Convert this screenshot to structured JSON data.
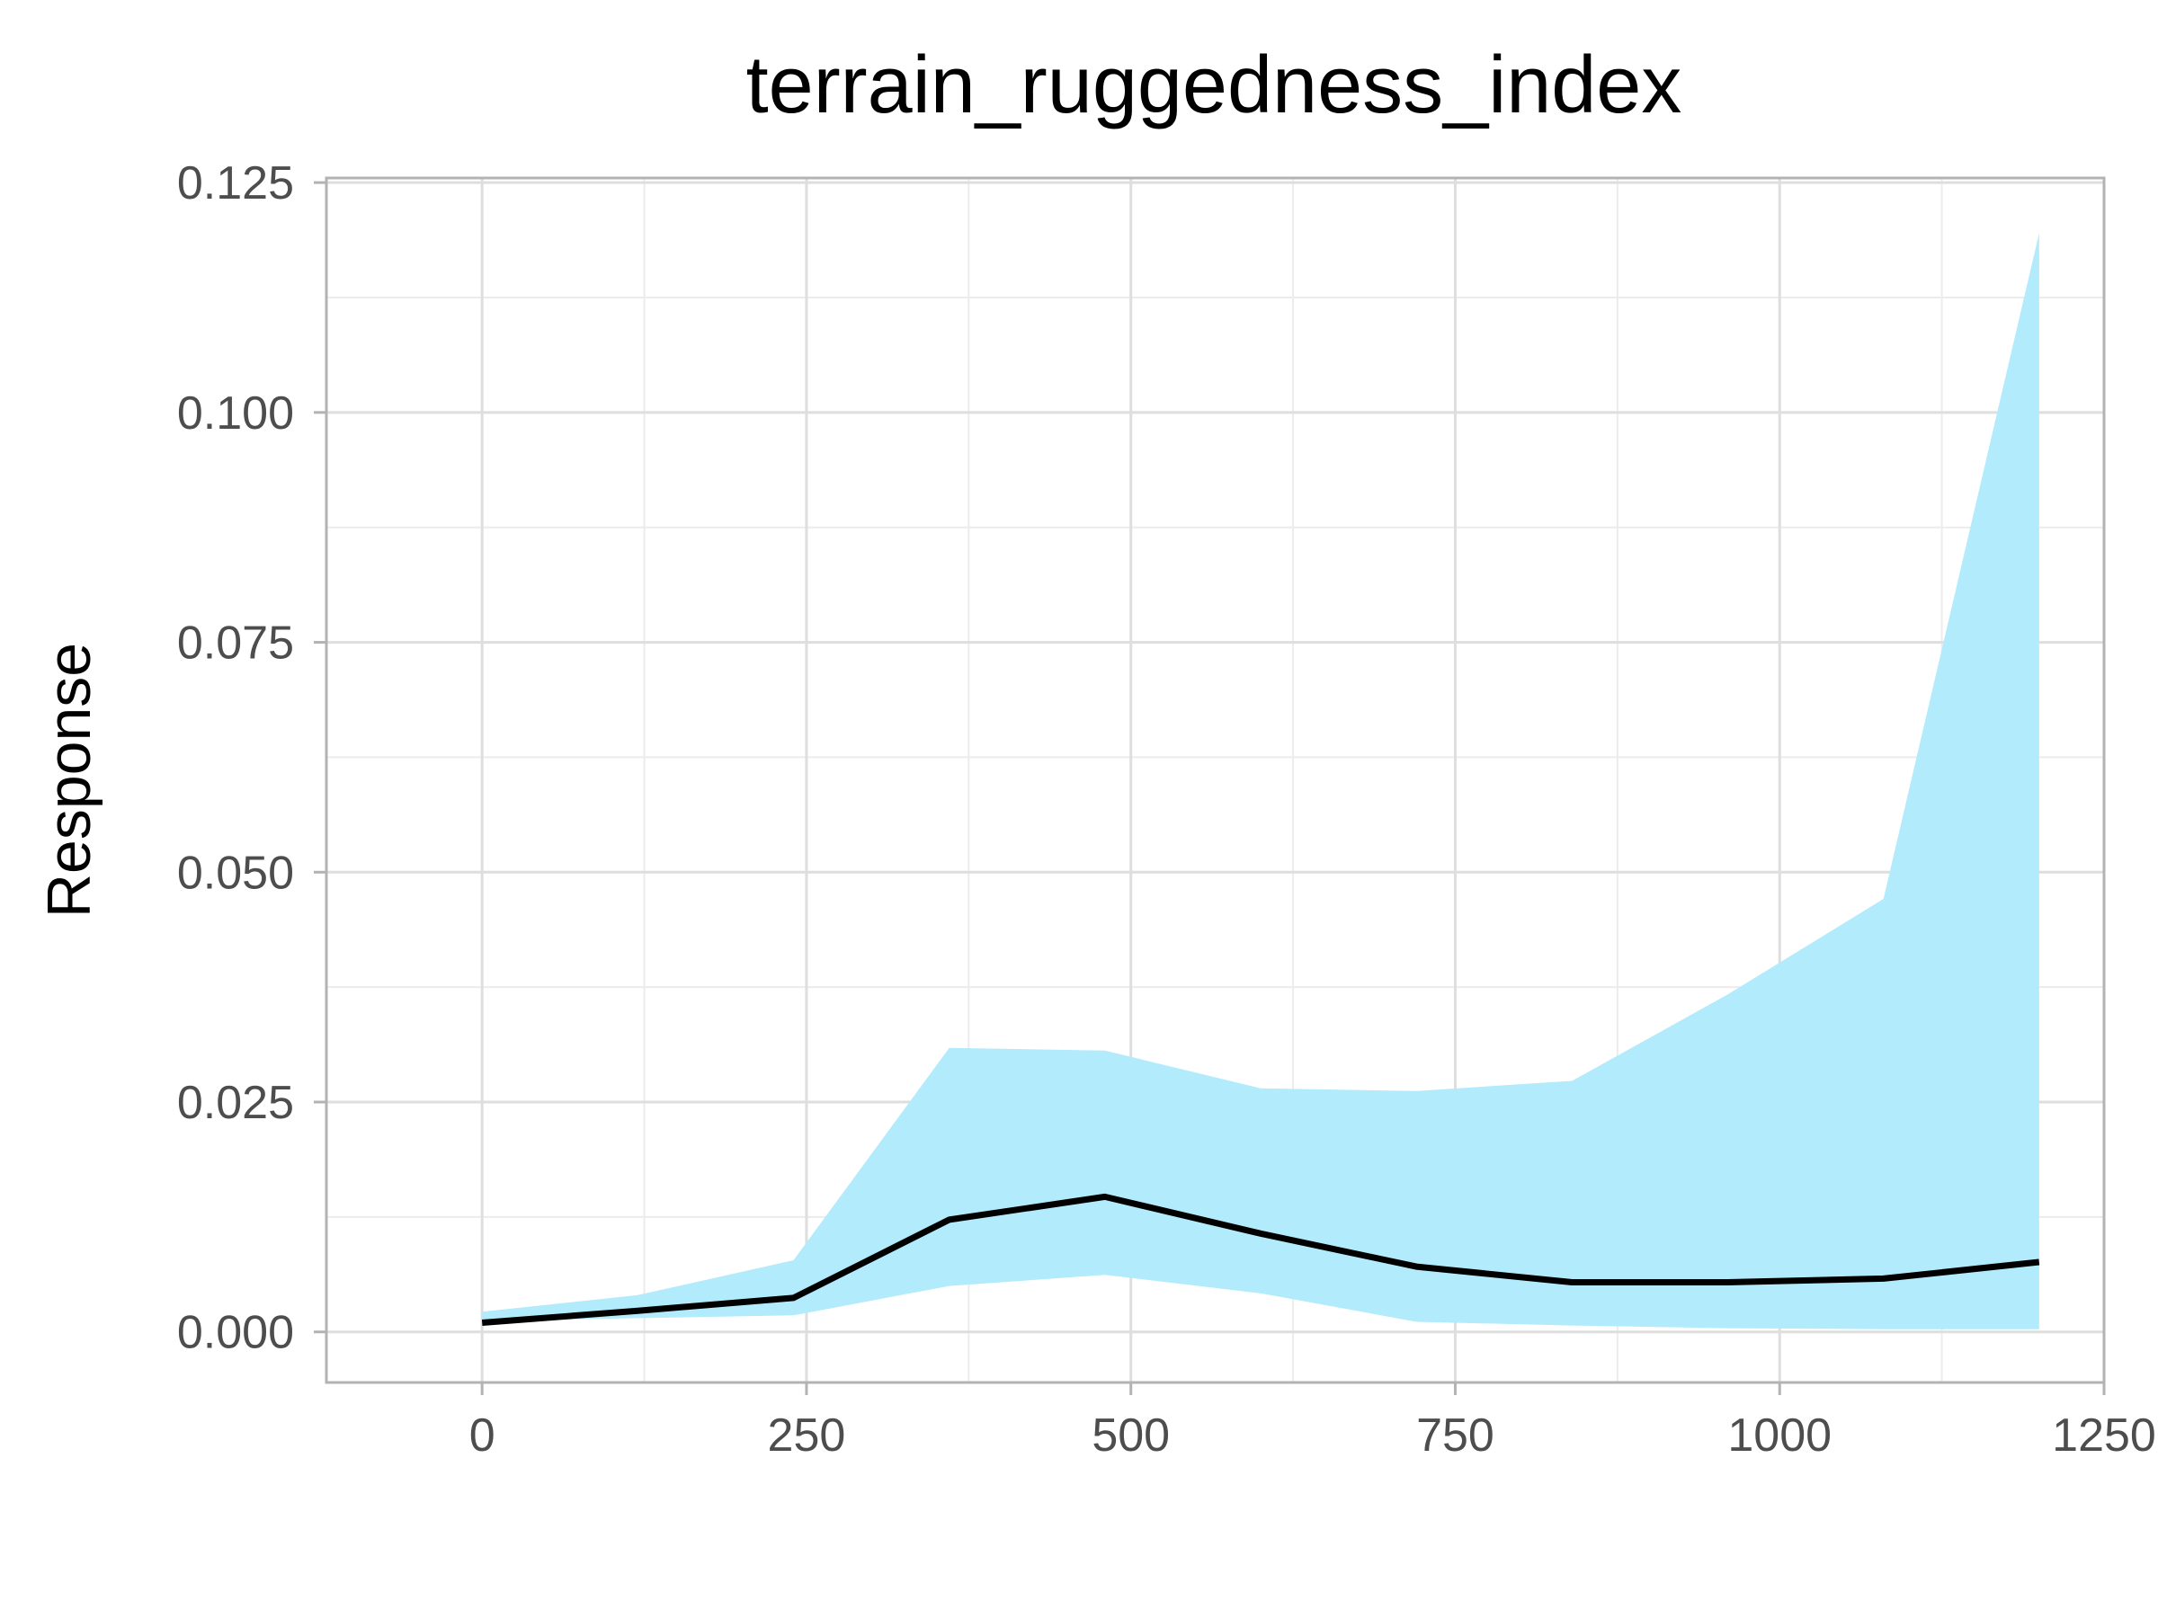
{
  "chart_data": {
    "type": "area",
    "title": "terrain_ruggedness_index",
    "xlabel": "",
    "ylabel": "Response",
    "xlim": [
      -120,
      1250
    ],
    "ylim": [
      -0.0055,
      0.1255
    ],
    "x_ticks": [
      0,
      250,
      500,
      750,
      1000,
      1250
    ],
    "x_tick_labels": [
      "0",
      "250",
      "500",
      "750",
      "1000",
      "1250"
    ],
    "y_ticks": [
      0.0,
      0.025,
      0.05,
      0.075,
      0.1,
      0.125
    ],
    "y_tick_labels": [
      "0.000",
      "0.025",
      "0.050",
      "0.075",
      "0.100",
      "0.125"
    ],
    "grid": true,
    "x": [
      0,
      120,
      240,
      360,
      480,
      600,
      720,
      840,
      960,
      1080,
      1200
    ],
    "series": [
      {
        "values": [
          0.001,
          0.0023,
          0.0037,
          0.0122,
          0.0147,
          0.0107,
          0.0071,
          0.0054,
          0.0054,
          0.0058,
          0.0076
        ],
        "lower": [
          0.0012,
          0.0015,
          0.0018,
          0.005,
          0.0062,
          0.0042,
          0.0011,
          0.0007,
          0.0004,
          0.0003,
          0.0003
        ],
        "upper": [
          0.0022,
          0.004,
          0.0078,
          0.0309,
          0.0306,
          0.0265,
          0.0262,
          0.0273,
          0.0367,
          0.0471,
          0.1195
        ]
      }
    ],
    "colors": {
      "band": "#b2ebfc",
      "line": "#000000",
      "grid_major": "#dedede",
      "grid_minor": "#ececec",
      "panel_border": "#b3b3b3",
      "tick_text": "#4d4d4d"
    }
  }
}
